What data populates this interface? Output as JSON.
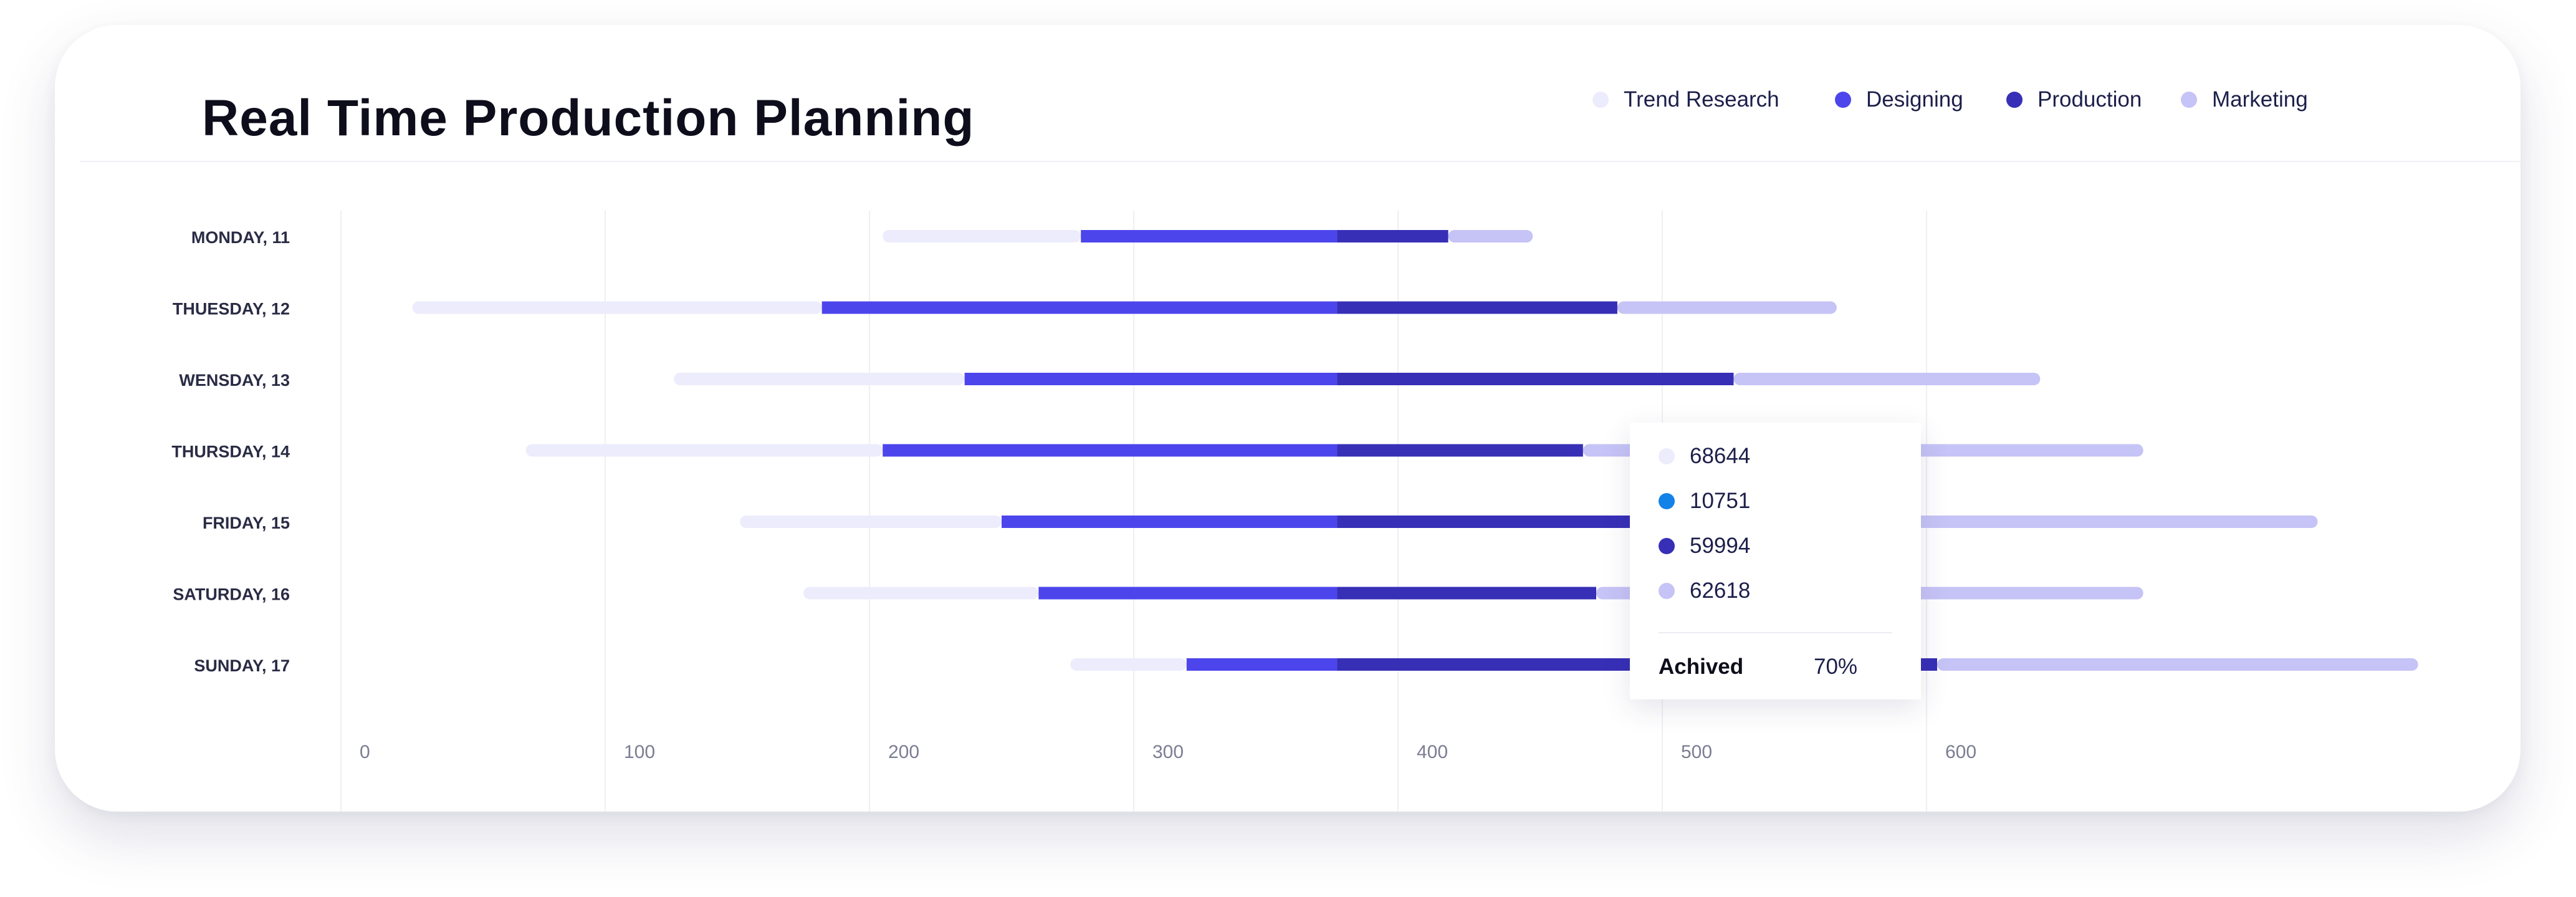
{
  "title": "Real Time Production Planning",
  "legend": [
    {
      "label": "Trend Research",
      "color": "#ececfc"
    },
    {
      "label": "Designing",
      "color": "#4d45ec"
    },
    {
      "label": "Production",
      "color": "#372fb6"
    },
    {
      "label": "Marketing",
      "color": "#c6c3f6"
    }
  ],
  "tooltip": {
    "rows": [
      {
        "value": "68644",
        "color": "#ececfc"
      },
      {
        "value": "10751",
        "color": "#1282e8"
      },
      {
        "value": "59994",
        "color": "#372fb6"
      },
      {
        "value": "62618",
        "color": "#c6c3f6"
      }
    ],
    "label": "Achived",
    "percent": "70%"
  },
  "chart_data": {
    "type": "bar",
    "orientation": "horizontal-stacked-range",
    "categories": [
      "MONDAY, 11",
      "THUESDAY, 12",
      "WENSDAY, 13",
      "THURSDAY, 14",
      "FRIDAY, 15",
      "SATURDAY, 16",
      "SUNDAY, 17"
    ],
    "series": [
      {
        "name": "Trend Research",
        "color": "#ececfc",
        "ranges": [
          [
            205,
            280
          ],
          [
            27,
            182
          ],
          [
            126,
            236
          ],
          [
            70,
            205
          ],
          [
            151,
            250
          ],
          [
            175,
            264
          ],
          [
            276,
            320
          ]
        ]
      },
      {
        "name": "Designing",
        "color": "#4d45ec",
        "ranges": [
          [
            280,
            377
          ],
          [
            182,
            377
          ],
          [
            236,
            377
          ],
          [
            205,
            377
          ],
          [
            250,
            377
          ],
          [
            264,
            377
          ],
          [
            320,
            377
          ]
        ]
      },
      {
        "name": "Production",
        "color": "#372fb6",
        "ranges": [
          [
            377,
            419
          ],
          [
            377,
            483
          ],
          [
            377,
            527
          ],
          [
            377,
            470
          ],
          [
            377,
            583
          ],
          [
            377,
            475
          ],
          [
            377,
            604
          ]
        ]
      },
      {
        "name": "Marketing",
        "color": "#c6c3f6",
        "ranges": [
          [
            419,
            451
          ],
          [
            483,
            566
          ],
          [
            527,
            643
          ],
          [
            470,
            682
          ],
          [
            583,
            748
          ],
          [
            475,
            682
          ],
          [
            604,
            786
          ]
        ]
      }
    ],
    "x_ticks": [
      "0",
      "100",
      "200",
      "300",
      "400",
      "500",
      "600"
    ],
    "xlim": [
      0,
      700
    ],
    "grid": true,
    "legend_position": "top-right"
  }
}
